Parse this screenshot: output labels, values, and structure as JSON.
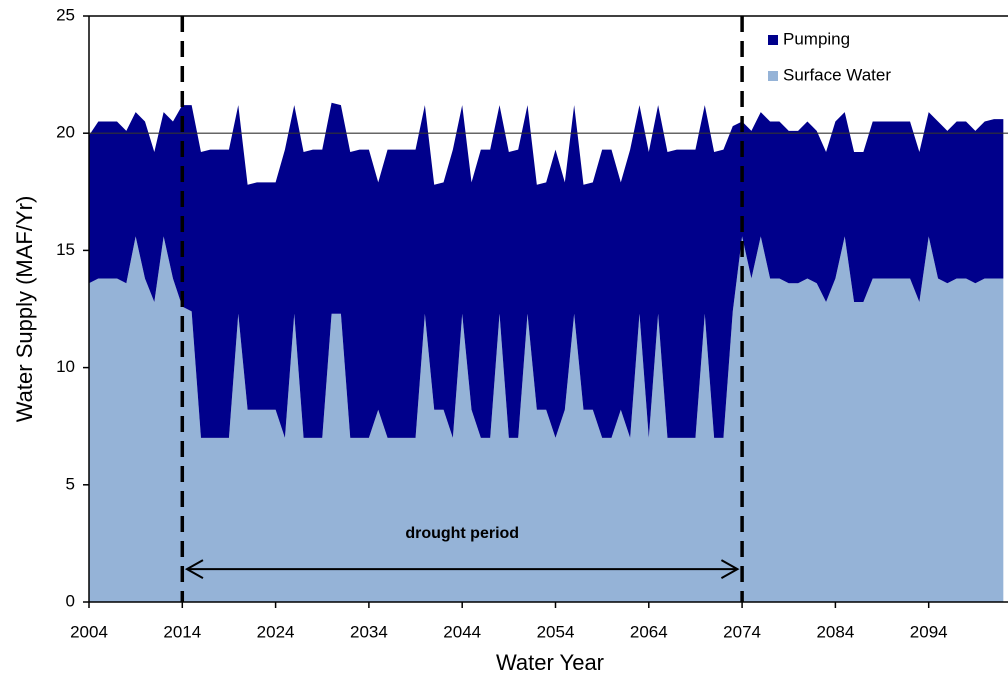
{
  "chart_data": {
    "type": "stacked_area",
    "x_label": "Water Year",
    "y_label": "Water Supply (MAF/Yr)",
    "x": [
      2004,
      2005,
      2006,
      2007,
      2008,
      2009,
      2010,
      2011,
      2012,
      2013,
      2014,
      2015,
      2016,
      2017,
      2018,
      2019,
      2020,
      2021,
      2022,
      2023,
      2024,
      2025,
      2026,
      2027,
      2028,
      2029,
      2030,
      2031,
      2032,
      2033,
      2034,
      2035,
      2036,
      2037,
      2038,
      2039,
      2040,
      2041,
      2042,
      2043,
      2044,
      2045,
      2046,
      2047,
      2048,
      2049,
      2050,
      2051,
      2052,
      2053,
      2054,
      2055,
      2056,
      2057,
      2058,
      2059,
      2060,
      2061,
      2062,
      2063,
      2064,
      2065,
      2066,
      2067,
      2068,
      2069,
      2070,
      2071,
      2072,
      2073,
      2074,
      2075,
      2076,
      2077,
      2078,
      2079,
      2080,
      2081,
      2082,
      2083,
      2084,
      2085,
      2086,
      2087,
      2088,
      2089,
      2090,
      2091,
      2092,
      2093,
      2094,
      2095,
      2096,
      2097,
      2098,
      2099,
      2100,
      2101,
      2102
    ],
    "series": [
      {
        "name": "Surface Water",
        "color": "#95b3d7",
        "values": [
          13.6,
          13.8,
          13.8,
          13.8,
          13.6,
          15.6,
          13.8,
          12.8,
          15.6,
          13.8,
          12.6,
          12.4,
          7.0,
          7.0,
          7.0,
          7.0,
          12.3,
          8.2,
          8.2,
          8.2,
          8.2,
          7.0,
          12.3,
          7.0,
          7.0,
          7.0,
          12.3,
          12.3,
          7.0,
          7.0,
          7.0,
          8.2,
          7.0,
          7.0,
          7.0,
          7.0,
          12.3,
          8.2,
          8.2,
          7.0,
          12.3,
          8.2,
          7.0,
          7.0,
          12.3,
          7.0,
          7.0,
          12.3,
          8.2,
          8.2,
          7.0,
          8.2,
          12.3,
          8.2,
          8.2,
          7.0,
          7.0,
          8.2,
          7.0,
          12.3,
          7.0,
          12.3,
          7.0,
          7.0,
          7.0,
          7.0,
          12.3,
          7.0,
          7.0,
          12.4,
          15.6,
          13.8,
          15.6,
          13.8,
          13.8,
          13.6,
          13.6,
          13.8,
          13.6,
          12.8,
          13.8,
          15.6,
          12.8,
          12.8,
          13.8,
          13.8,
          13.8,
          13.8,
          13.8,
          12.8,
          15.6,
          13.8,
          13.6,
          13.8,
          13.8,
          13.6,
          13.8,
          13.8,
          13.8
        ]
      },
      {
        "name": "Pumping",
        "color": "#00008b",
        "values": [
          6.3,
          6.7,
          6.7,
          6.7,
          6.5,
          5.3,
          6.7,
          6.4,
          5.3,
          6.7,
          8.6,
          8.8,
          12.2,
          12.3,
          12.3,
          12.3,
          8.9,
          9.6,
          9.7,
          9.7,
          9.7,
          12.3,
          8.9,
          12.2,
          12.3,
          12.3,
          9.0,
          8.9,
          12.2,
          12.3,
          12.3,
          9.7,
          12.3,
          12.3,
          12.3,
          12.3,
          8.9,
          9.6,
          9.7,
          12.3,
          8.9,
          9.7,
          12.3,
          12.3,
          8.9,
          12.2,
          12.3,
          8.9,
          9.6,
          9.7,
          12.3,
          9.7,
          8.9,
          9.6,
          9.7,
          12.3,
          12.3,
          9.7,
          12.3,
          8.9,
          12.2,
          8.9,
          12.2,
          12.3,
          12.3,
          12.3,
          8.9,
          12.2,
          12.3,
          7.9,
          4.9,
          6.3,
          5.3,
          6.7,
          6.7,
          6.5,
          6.5,
          6.7,
          6.5,
          6.4,
          6.7,
          5.3,
          6.4,
          6.4,
          6.7,
          6.7,
          6.7,
          6.7,
          6.7,
          6.4,
          5.3,
          6.7,
          6.5,
          6.7,
          6.7,
          6.5,
          6.7,
          6.8,
          6.8
        ]
      }
    ],
    "xlim": [
      2004,
      2102.5
    ],
    "ylim": [
      0,
      25
    ],
    "xticks": [
      2004,
      2014,
      2024,
      2034,
      2044,
      2054,
      2064,
      2074,
      2084,
      2094
    ],
    "yticks": [
      0,
      5,
      10,
      15,
      20,
      25
    ],
    "reference_line": 20,
    "vlines": [
      2014,
      2074
    ],
    "annotation": {
      "text": "drought period",
      "x": [
        2014.5,
        2073.5
      ],
      "y": 1.4,
      "text_y": 2.9
    },
    "legend": "upper right"
  }
}
